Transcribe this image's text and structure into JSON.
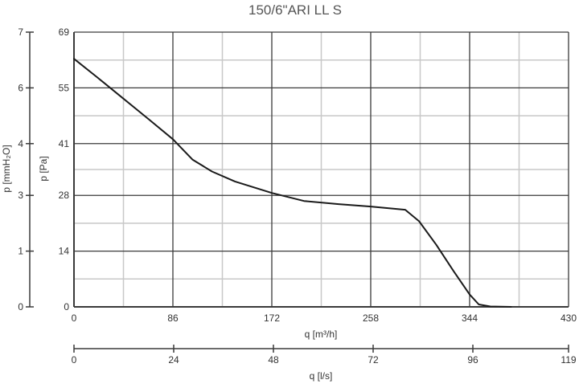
{
  "chart_data": {
    "type": "line",
    "title": "150/6\"ARI LL S",
    "xlabel": "q [m³/h]",
    "x2label": "q [l/s]",
    "ylabel": "p [Pa]",
    "y2label": "p [mmH₂O]",
    "xlim": [
      0,
      430
    ],
    "ylim": [
      0,
      69
    ],
    "x_ticks": [
      "0",
      "86",
      "172",
      "258",
      "344",
      "430"
    ],
    "x_tick_values": [
      0,
      86,
      172,
      258,
      344,
      430
    ],
    "x2_ticks": [
      "0",
      "24",
      "48",
      "72",
      "96",
      "119"
    ],
    "x2_tick_values_m3h": [
      0,
      86.7,
      173.4,
      260.1,
      346.8,
      430
    ],
    "y_ticks": [
      "0",
      "14",
      "28",
      "41",
      "55",
      "69"
    ],
    "y_tick_values": [
      0,
      14,
      28,
      41,
      55,
      69
    ],
    "y2_ticks": [
      "0",
      "1",
      "3",
      "4",
      "6",
      "7"
    ],
    "y2_tick_values_pa": [
      0,
      14,
      28,
      41,
      55,
      69
    ],
    "grid": true,
    "series": [
      {
        "values_xy": [
          [
            0,
            62.3
          ],
          [
            20,
            57.7
          ],
          [
            43,
            52.3
          ],
          [
            65,
            47.1
          ],
          [
            86,
            42.1
          ],
          [
            103,
            37.0
          ],
          [
            120,
            34.0
          ],
          [
            140,
            31.5
          ],
          [
            172,
            28.6
          ],
          [
            200,
            26.6
          ],
          [
            230,
            25.8
          ],
          [
            258,
            25.2
          ],
          [
            288,
            24.4
          ],
          [
            300,
            21.5
          ],
          [
            315,
            15.6
          ],
          [
            330,
            9.0
          ],
          [
            344,
            3.1
          ],
          [
            352,
            0.6
          ],
          [
            362,
            0.1
          ],
          [
            380,
            0
          ]
        ]
      }
    ]
  },
  "colors": {
    "line": "#1a1a1a",
    "grid_major": "#3a3a3a",
    "grid_minor": "#c8c8c8",
    "axis": "#3a3a3a"
  }
}
